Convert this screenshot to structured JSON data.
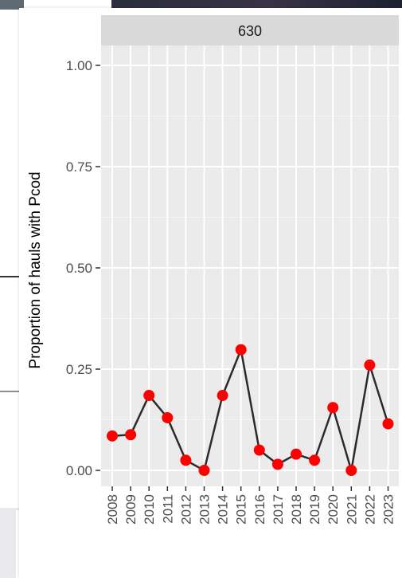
{
  "chart_data": {
    "type": "line",
    "facet_label": "630",
    "xlabel": "",
    "ylabel": "Proportion of hauls with Pcod",
    "ylim": [
      -0.035,
      1.1
    ],
    "yticks": [
      0.0,
      0.25,
      0.5,
      0.75,
      1.0
    ],
    "ytick_labels": [
      "0.00",
      "0.25",
      "0.50",
      "0.75",
      "1.00"
    ],
    "x": [
      "2008",
      "2009",
      "2010",
      "2011",
      "2012",
      "2013",
      "2014",
      "2015",
      "2016",
      "2017",
      "2018",
      "2019",
      "2020",
      "2021",
      "2022",
      "2023"
    ],
    "series": [
      {
        "values": [
          0.085,
          0.088,
          0.185,
          0.13,
          0.025,
          0.0,
          0.185,
          0.298,
          0.05,
          0.015,
          0.04,
          0.025,
          0.155,
          0.0,
          0.26,
          0.115
        ]
      }
    ],
    "colors": {
      "line": "#2b2b2b",
      "point": "#ff0000",
      "panel": "#ebebeb",
      "strip": "#d9d9d9",
      "grid": "#ffffff"
    },
    "grid": true
  }
}
